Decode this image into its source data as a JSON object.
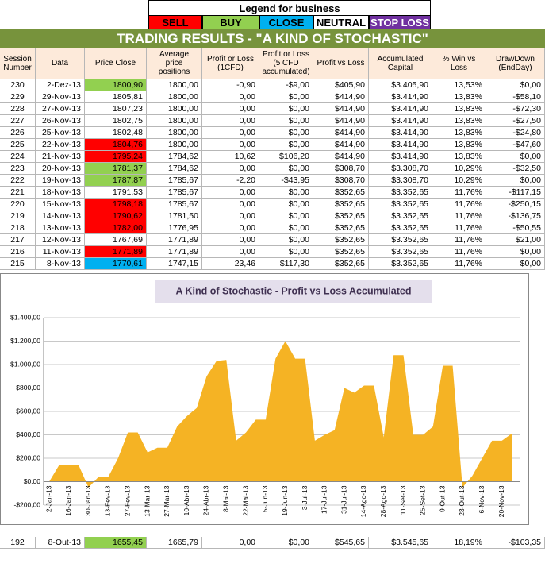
{
  "legend": {
    "title": "Legend for business",
    "items": [
      {
        "label": "SELL",
        "color": "#ff0000",
        "text_color": "#000000"
      },
      {
        "label": "BUY",
        "color": "#92d050",
        "text_color": "#000000"
      },
      {
        "label": "CLOSE",
        "color": "#00b0f0",
        "text_color": "#000000"
      },
      {
        "label": "NEUTRAL",
        "color": "#ffffff",
        "text_color": "#000000"
      },
      {
        "label": "STOP LOSS",
        "color": "#7030a0",
        "text_color": "#ffffff"
      }
    ]
  },
  "table": {
    "title": "TRADING RESULTS - \"A KIND OF STOCHASTIC\"",
    "header": [
      "Session Number",
      "Data",
      "Price Close",
      "Average price positions",
      "Profit or Loss (1CFD)",
      "Profit or Loss (5 CFD accumulated)",
      "Profit vs Loss",
      "Accumulated Capital",
      "% Win vs Loss",
      "DrawDown (EndDay)"
    ],
    "rows": [
      [
        "230",
        "2-Dez-13",
        "1800,90",
        "1800,00",
        "-0,90",
        "-$9,00",
        "$405,90",
        "$3.405,90",
        "13,53%",
        "$0,00"
      ],
      [
        "229",
        "29-Nov-13",
        "1805,81",
        "1800,00",
        "0,00",
        "$0,00",
        "$414,90",
        "$3.414,90",
        "13,83%",
        "-$58,10"
      ],
      [
        "228",
        "27-Nov-13",
        "1807,23",
        "1800,00",
        "0,00",
        "$0,00",
        "$414,90",
        "$3.414,90",
        "13,83%",
        "-$72,30"
      ],
      [
        "227",
        "26-Nov-13",
        "1802,75",
        "1800,00",
        "0,00",
        "$0,00",
        "$414,90",
        "$3.414,90",
        "13,83%",
        "-$27,50"
      ],
      [
        "226",
        "25-Nov-13",
        "1802,48",
        "1800,00",
        "0,00",
        "$0,00",
        "$414,90",
        "$3.414,90",
        "13,83%",
        "-$24,80"
      ],
      [
        "225",
        "22-Nov-13",
        "1804,76",
        "1800,00",
        "0,00",
        "$0,00",
        "$414,90",
        "$3.414,90",
        "13,83%",
        "-$47,60"
      ],
      [
        "224",
        "21-Nov-13",
        "1795,24",
        "1784,62",
        "10,62",
        "$106,20",
        "$414,90",
        "$3.414,90",
        "13,83%",
        "$0,00"
      ],
      [
        "223",
        "20-Nov-13",
        "1781,37",
        "1784,62",
        "0,00",
        "$0,00",
        "$308,70",
        "$3.308,70",
        "10,29%",
        "-$32,50"
      ],
      [
        "222",
        "19-Nov-13",
        "1787,87",
        "1785,67",
        "-2,20",
        "-$43,95",
        "$308,70",
        "$3.308,70",
        "10,29%",
        "$0,00"
      ],
      [
        "221",
        "18-Nov-13",
        "1791,53",
        "1785,67",
        "0,00",
        "$0,00",
        "$352,65",
        "$3.352,65",
        "11,76%",
        "-$117,15"
      ],
      [
        "220",
        "15-Nov-13",
        "1798,18",
        "1785,67",
        "0,00",
        "$0,00",
        "$352,65",
        "$3.352,65",
        "11,76%",
        "-$250,15"
      ],
      [
        "219",
        "14-Nov-13",
        "1790,62",
        "1781,50",
        "0,00",
        "$0,00",
        "$352,65",
        "$3.352,65",
        "11,76%",
        "-$136,75"
      ],
      [
        "218",
        "13-Nov-13",
        "1782,00",
        "1776,95",
        "0,00",
        "$0,00",
        "$352,65",
        "$3.352,65",
        "11,76%",
        "-$50,55"
      ],
      [
        "217",
        "12-Nov-13",
        "1767,69",
        "1771,89",
        "0,00",
        "$0,00",
        "$352,65",
        "$3.352,65",
        "11,76%",
        "$21,00"
      ],
      [
        "216",
        "11-Nov-13",
        "1771,89",
        "1771,89",
        "0,00",
        "$0,00",
        "$352,65",
        "$3.352,65",
        "11,76%",
        "$0,00"
      ],
      [
        "215",
        "8-Nov-13",
        "1770,61",
        "1747,15",
        "23,46",
        "$117,30",
        "$352,65",
        "$3.352,65",
        "11,76%",
        "$0,00"
      ],
      [
        "192",
        "8-Out-13",
        "1655,45",
        "1665,79",
        "0,00",
        "$0,00",
        "$545,65",
        "$3.545,65",
        "18,19%",
        "-$103,35"
      ]
    ],
    "price_fills": [
      "#92d050",
      null,
      null,
      null,
      null,
      "#ff0000",
      "#ff0000",
      "#92d050",
      "#92d050",
      null,
      "#ff0000",
      "#ff0000",
      "#ff0000",
      null,
      "#ff0000",
      "#00b0f0",
      "#92d050"
    ]
  },
  "chart_data": {
    "type": "area",
    "title": "A Kind of Stochastic - Profit vs Loss Accumulated",
    "categories": [
      "2-Jan-13",
      null,
      "16-Jan-13",
      null,
      "30-Jan-13",
      null,
      "13-Fev-13",
      null,
      "27-Fev-13",
      null,
      "13-Mar-13",
      null,
      "27-Mar-13",
      null,
      "10-Abr-13",
      null,
      "24-Abr-13",
      null,
      "8-Mai-13",
      null,
      "22-Mai-13",
      null,
      "5-Jun-13",
      null,
      "19-Jun-13",
      null,
      "3-Jul-13",
      null,
      "17-Jul-13",
      null,
      "31-Jul-13",
      null,
      "14-Ago-13",
      null,
      "28-Ago-13",
      null,
      "11-Set-13",
      null,
      "25-Set-13",
      null,
      "9-Out-13",
      null,
      "23-Out-13",
      null,
      "6-Nov-13",
      null,
      "20-Nov-13",
      null
    ],
    "values": [
      0,
      140,
      140,
      140,
      -50,
      40,
      40,
      200,
      420,
      420,
      250,
      290,
      290,
      470,
      560,
      630,
      900,
      1030,
      1040,
      350,
      420,
      530,
      530,
      1050,
      1200,
      1050,
      1050,
      350,
      400,
      440,
      800,
      760,
      820,
      820,
      380,
      1080,
      1080,
      400,
      400,
      470,
      990,
      990,
      -50,
      50,
      200,
      350,
      350,
      410
    ],
    "color": "#f5b324",
    "ylim": [
      -200,
      1400
    ],
    "yticks": [
      {
        "value": -200,
        "label": "-$200,00"
      },
      {
        "value": 0,
        "label": "$0,00"
      },
      {
        "value": 200,
        "label": "$200,00"
      },
      {
        "value": 400,
        "label": "$400,00"
      },
      {
        "value": 600,
        "label": "$600,00"
      },
      {
        "value": 800,
        "label": "$800,00"
      },
      {
        "value": 1000,
        "label": "$1.000,00"
      },
      {
        "value": 1200,
        "label": "$1.200,00"
      },
      {
        "value": 1400,
        "label": "$1.400,00"
      }
    ],
    "grid": true
  }
}
